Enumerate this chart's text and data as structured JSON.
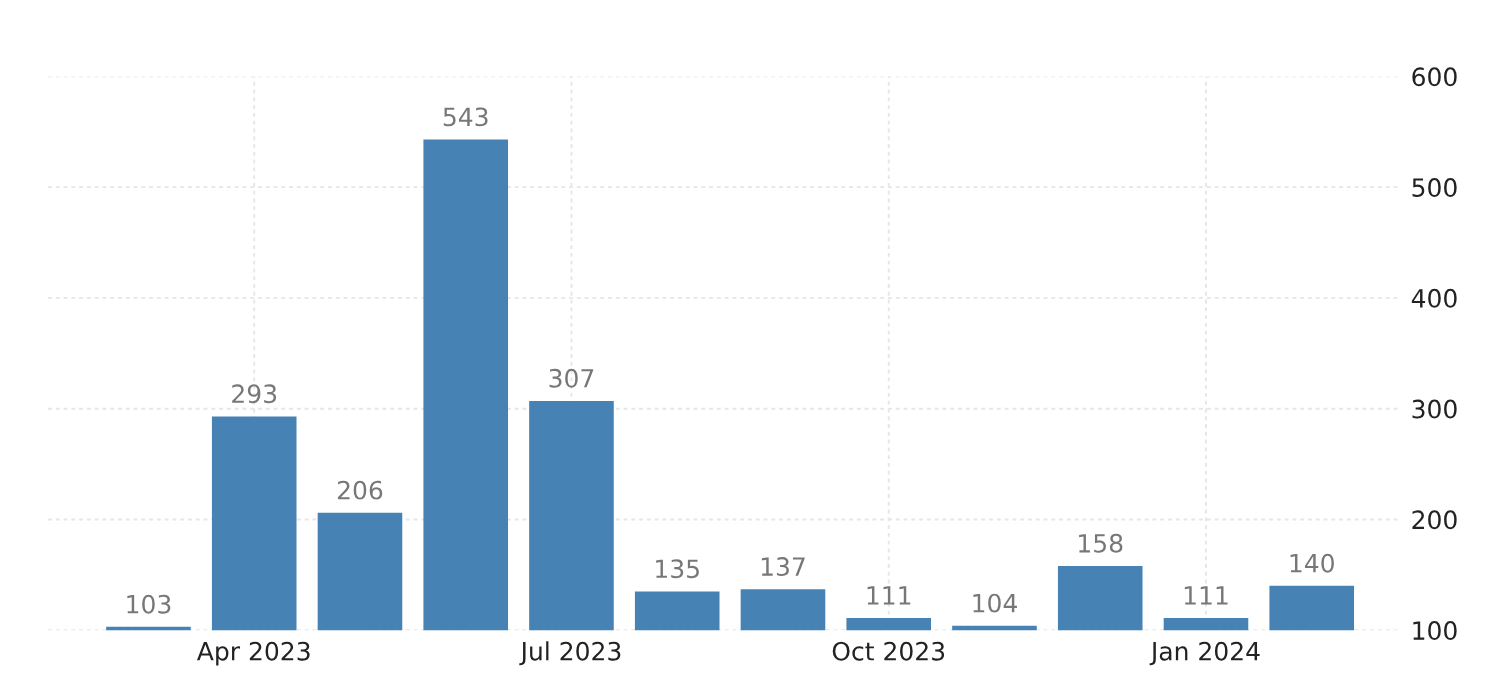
{
  "chart_data": {
    "type": "bar",
    "categories": [
      null,
      "Apr 2023",
      null,
      null,
      "Jul 2023",
      null,
      null,
      "Oct 2023",
      null,
      null,
      "Jan 2024",
      null
    ],
    "values": [
      103,
      293,
      206,
      543,
      307,
      135,
      137,
      111,
      104,
      158,
      111,
      140
    ],
    "color": "#4682b4",
    "ylim": [
      100,
      600
    ],
    "yticks": [
      100,
      200,
      300,
      400,
      500,
      600
    ],
    "grid": true,
    "data_labels": true
  }
}
